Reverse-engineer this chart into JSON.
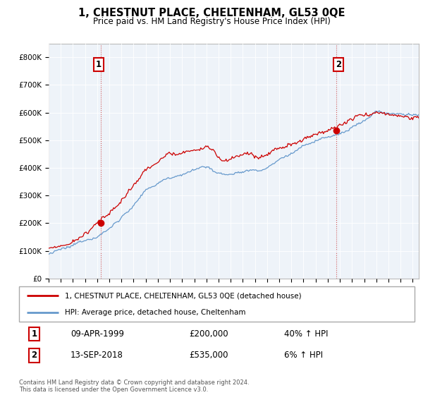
{
  "title": "1, CHESTNUT PLACE, CHELTENHAM, GL53 0QE",
  "subtitle": "Price paid vs. HM Land Registry's House Price Index (HPI)",
  "legend_label_red": "1, CHESTNUT PLACE, CHELTENHAM, GL53 0QE (detached house)",
  "legend_label_blue": "HPI: Average price, detached house, Cheltenham",
  "annotation1_label": "1",
  "annotation1_date": "09-APR-1999",
  "annotation1_price": "£200,000",
  "annotation1_hpi": "40% ↑ HPI",
  "annotation2_label": "2",
  "annotation2_date": "13-SEP-2018",
  "annotation2_price": "£535,000",
  "annotation2_hpi": "6% ↑ HPI",
  "footer": "Contains HM Land Registry data © Crown copyright and database right 2024.\nThis data is licensed under the Open Government Licence v3.0.",
  "red_color": "#cc0000",
  "blue_color": "#6699cc",
  "ylim": [
    0,
    850000
  ],
  "yticks": [
    0,
    100000,
    200000,
    300000,
    400000,
    500000,
    600000,
    700000,
    800000
  ],
  "ytick_labels": [
    "£0",
    "£100K",
    "£200K",
    "£300K",
    "£400K",
    "£500K",
    "£600K",
    "£700K",
    "£800K"
  ],
  "sale1_x": 1999.27,
  "sale1_y": 200000,
  "sale2_x": 2018.71,
  "sale2_y": 535000,
  "vline1_x": 1999.27,
  "vline2_x": 2018.71,
  "xlim_start": 1995.0,
  "xlim_end": 2025.5
}
